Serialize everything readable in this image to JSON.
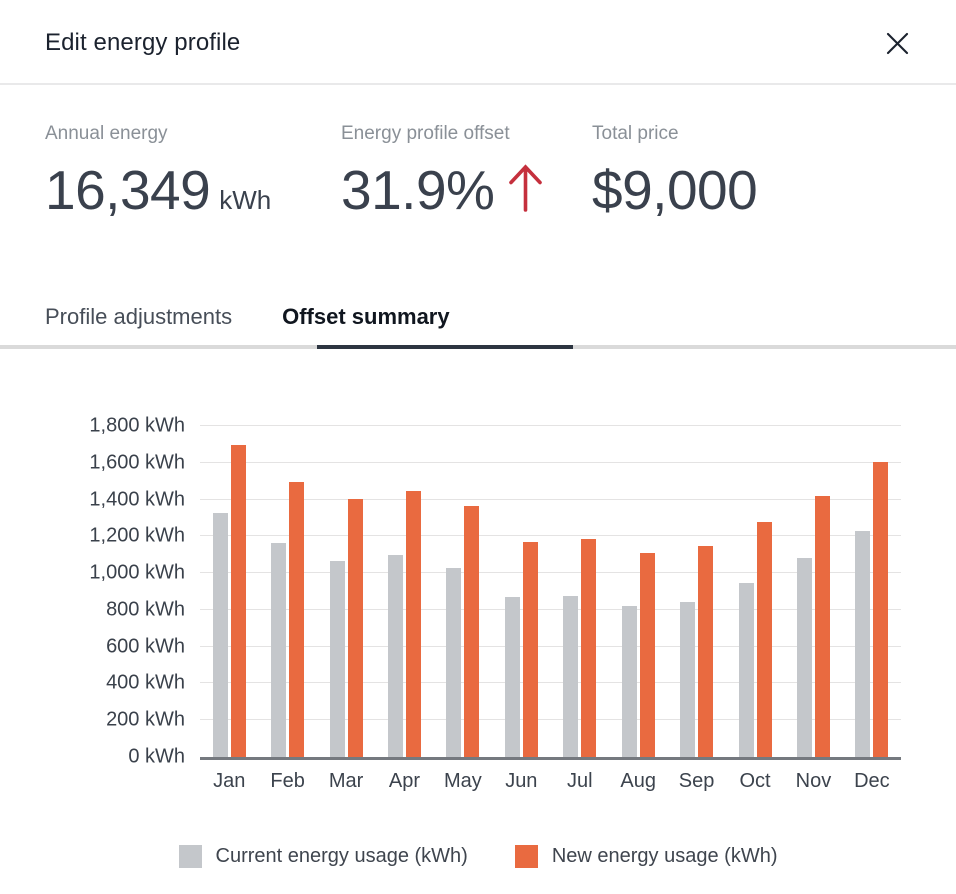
{
  "header": {
    "title": "Edit energy profile"
  },
  "stats": {
    "annual_energy": {
      "label": "Annual energy",
      "value": "16,349",
      "unit": "kWh"
    },
    "offset": {
      "label": "Energy profile offset",
      "value": "31.9%",
      "trend": "up"
    },
    "total_price": {
      "label": "Total price",
      "value": "$9,000"
    }
  },
  "tabs": [
    {
      "label": "Profile adjustments",
      "active": false
    },
    {
      "label": "Offset summary",
      "active": true
    }
  ],
  "chart_data": {
    "type": "bar",
    "title": "",
    "xlabel": "",
    "ylabel": "",
    "categories": [
      "Jan",
      "Feb",
      "Mar",
      "Apr",
      "May",
      "Jun",
      "Jul",
      "Aug",
      "Sep",
      "Oct",
      "Nov",
      "Dec"
    ],
    "series": [
      {
        "name": "Current energy usage (kWh)",
        "color": "#c4c7cb",
        "values": [
          1325,
          1165,
          1065,
          1100,
          1030,
          870,
          875,
          820,
          845,
          945,
          1080,
          1230
        ]
      },
      {
        "name": "New energy usage (kWh)",
        "color": "#e96a40",
        "values": [
          1695,
          1495,
          1405,
          1445,
          1365,
          1170,
          1185,
          1110,
          1150,
          1280,
          1420,
          1605
        ]
      }
    ],
    "ylim": [
      0,
      1800
    ],
    "ytick_step": 200,
    "y_tick_labels": [
      "0 kWh",
      "200 kWh",
      "400 kWh",
      "600 kWh",
      "800 kWh",
      "1,000 kWh",
      "1,200 kWh",
      "1,400 kWh",
      "1,600 kWh",
      "1,800 kWh"
    ],
    "grid": true,
    "legend_position": "bottom"
  },
  "colors": {
    "accent_orange": "#e96a40",
    "bar_gray": "#c4c7cb",
    "trend_red": "#c5303d",
    "text_dark": "#3a414d",
    "text_muted": "#8a9097",
    "gridline": "#e4e3e3",
    "axis_line": "#75797f",
    "tab_underline": "#2d3541"
  }
}
